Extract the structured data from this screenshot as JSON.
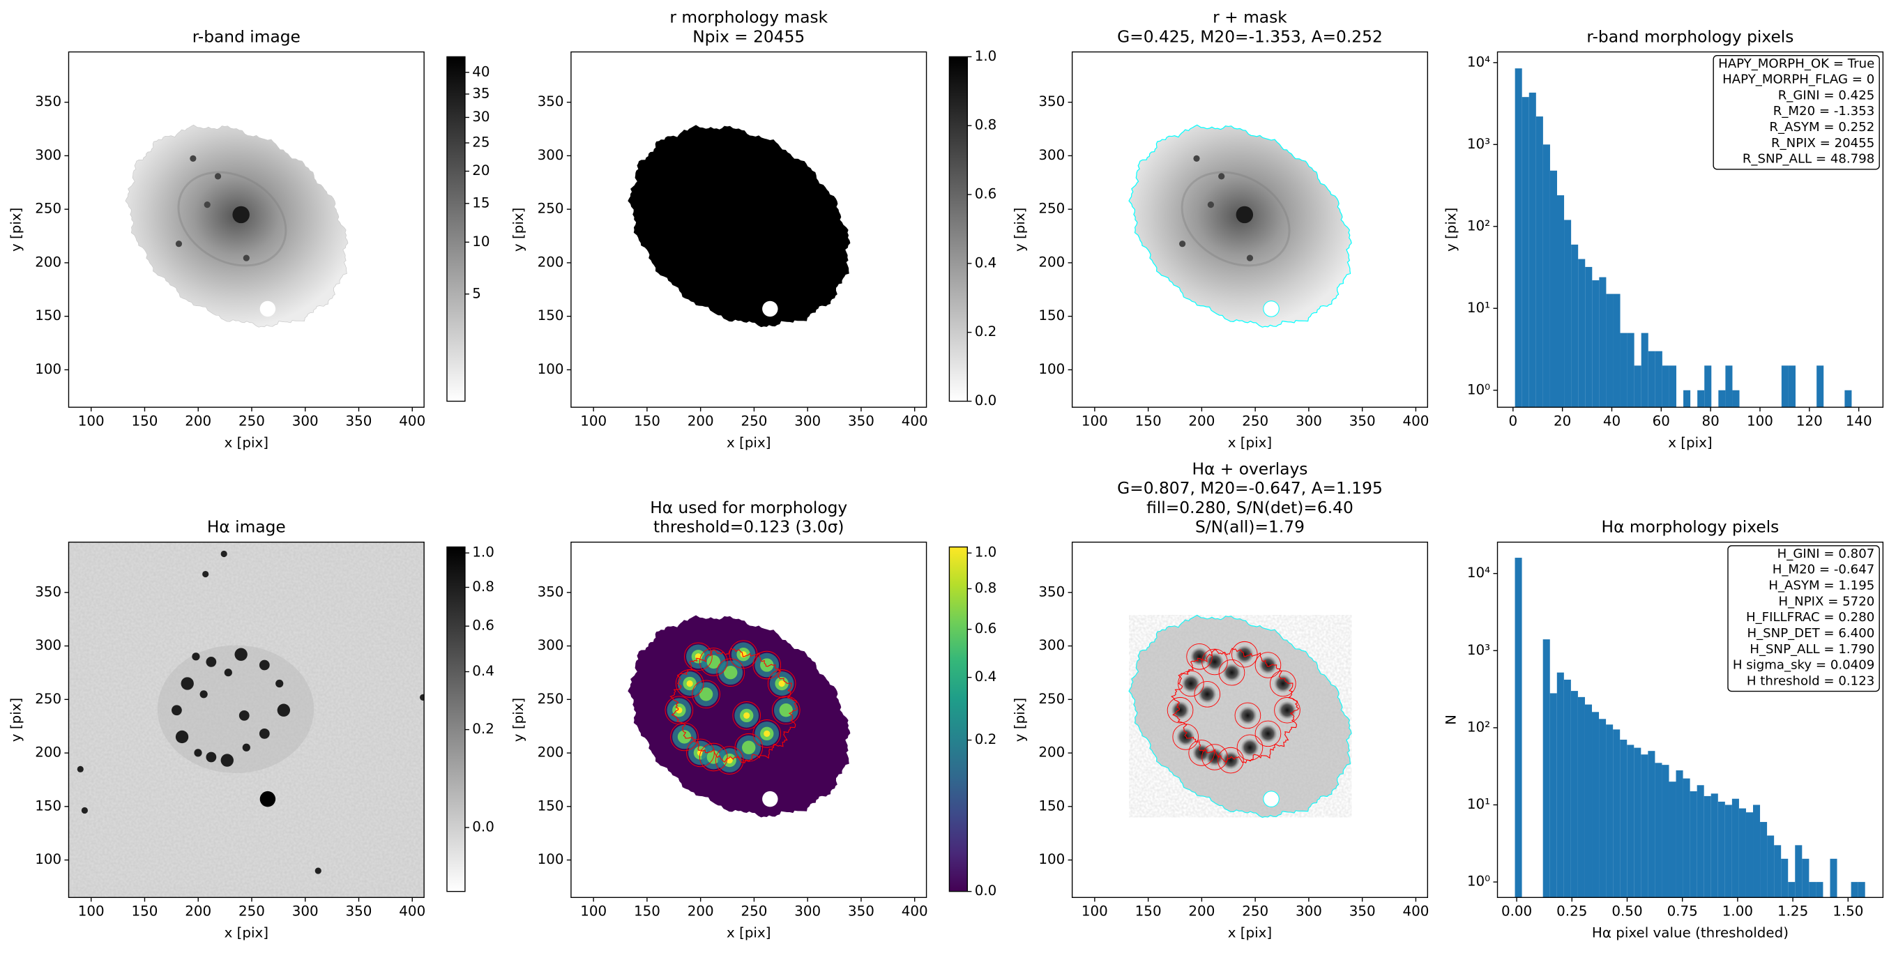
{
  "chart_data": [
    {
      "type": "image",
      "title": [
        "r-band image"
      ],
      "xlabel": "x [pix]",
      "ylabel": "y [pix]",
      "xlim": [
        79,
        411
      ],
      "ylim": [
        65,
        397
      ],
      "xticks": [
        100,
        150,
        200,
        250,
        300,
        350,
        400
      ],
      "yticks": [
        100,
        150,
        200,
        250,
        300,
        350
      ],
      "colorbar": {
        "cmap": "gray_r",
        "clim": [
          0.84,
          43.8
        ],
        "gamma": 0.5,
        "ticks": [
          5,
          10,
          15,
          20,
          25,
          30,
          35,
          40
        ]
      }
    },
    {
      "type": "image",
      "title": [
        "r morphology mask",
        "Npix = 20455"
      ],
      "xlabel": "x [pix]",
      "ylabel": "y [pix]",
      "xlim": [
        79,
        411
      ],
      "ylim": [
        65,
        397
      ],
      "xticks": [
        100,
        150,
        200,
        250,
        300,
        350,
        400
      ],
      "yticks": [
        100,
        150,
        200,
        250,
        300,
        350
      ],
      "colorbar": {
        "cmap": "gray_r",
        "clim": [
          0,
          1
        ],
        "gamma": 1,
        "ticks": [
          {
            "value": 0,
            "label": "0.0"
          },
          {
            "value": 0.2,
            "label": "0.2"
          },
          {
            "value": 0.4,
            "label": "0.4"
          },
          {
            "value": 0.6,
            "label": "0.6"
          },
          {
            "value": 0.8,
            "label": "0.8"
          },
          {
            "value": 1,
            "label": "1.0"
          }
        ]
      }
    },
    {
      "type": "image",
      "title": [
        "r + mask",
        "G=0.425, M20=-1.353, A=0.252"
      ],
      "xlabel": "x [pix]",
      "ylabel": "y [pix]",
      "xlim": [
        79,
        411
      ],
      "ylim": [
        65,
        397
      ],
      "xticks": [
        100,
        150,
        200,
        250,
        300,
        350,
        400
      ],
      "yticks": [
        100,
        150,
        200,
        250,
        300,
        350
      ]
    },
    {
      "type": "histogram",
      "title": [
        "r-band morphology pixels"
      ],
      "xlabel": "x [pix]",
      "ylabel": "y [pix]",
      "color": "#1f77b4",
      "log_y": true,
      "xlim": [
        -6.3,
        149.8
      ],
      "ylim": [
        0.62,
        13500
      ],
      "xticks": [
        0,
        20,
        40,
        60,
        80,
        100,
        120,
        140
      ],
      "yticks": [
        {
          "value": 1,
          "label": "10⁰"
        },
        {
          "value": 10,
          "label": "10¹"
        },
        {
          "value": 100,
          "label": "10²"
        },
        {
          "value": 1000,
          "label": "10³"
        },
        {
          "value": 10000,
          "label": "10⁴"
        }
      ],
      "bins": [
        0.8,
        3.64,
        6.48,
        9.32,
        12.16,
        15,
        17.84,
        20.68,
        23.52,
        26.36,
        29.2,
        32.04,
        34.88,
        37.72,
        40.56,
        43.4,
        46.24,
        49.08,
        51.92,
        54.76,
        57.6,
        60.44,
        63.28,
        66.12,
        68.96,
        71.8,
        74.64,
        77.48,
        80.32,
        83.16,
        86,
        88.84,
        91.68,
        94.52,
        97.36,
        100.2,
        103.04,
        105.88,
        108.72,
        111.56,
        114.4,
        117.24,
        120.08,
        122.92,
        125.76,
        128.6,
        131.44,
        134.28,
        137.12,
        139.96,
        142.8
      ],
      "counts": [
        8500,
        3800,
        4300,
        2200,
        1000,
        480,
        240,
        120,
        60,
        40,
        32,
        22,
        24,
        15,
        15,
        5,
        5,
        2,
        5,
        3,
        3,
        2,
        2,
        0,
        1,
        0,
        1,
        2,
        0,
        1,
        2,
        1,
        0,
        0,
        0,
        0,
        0,
        0,
        2,
        2,
        0,
        0,
        0,
        2,
        0,
        0,
        0,
        1,
        0,
        0
      ],
      "textbox": [
        "HAPY_MORPH_OK = True",
        "HAPY_MORPH_FLAG = 0",
        "R_GINI = 0.425",
        "R_M20 = -1.353",
        "R_ASYM = 0.252",
        "R_NPIX = 20455",
        "R_SNP_ALL = 48.798"
      ]
    },
    {
      "type": "image",
      "title": [
        "Hα image"
      ],
      "xlabel": "x [pix]",
      "ylabel": "y [pix]",
      "xlim": [
        79,
        411
      ],
      "ylim": [
        65,
        397
      ],
      "xticks": [
        100,
        150,
        200,
        250,
        300,
        350,
        400
      ],
      "yticks": [
        100,
        150,
        200,
        250,
        300,
        350
      ],
      "colorbar": {
        "cmap": "gray_r",
        "clim": [
          -0.037,
          1.037
        ],
        "gamma": 0.5,
        "ticks": [
          {
            "value": 0,
            "label": "0.0"
          },
          {
            "value": 0.2,
            "label": "0.2"
          },
          {
            "value": 0.4,
            "label": "0.4"
          },
          {
            "value": 0.6,
            "label": "0.6"
          },
          {
            "value": 0.8,
            "label": "0.8"
          },
          {
            "value": 1,
            "label": "1.0"
          }
        ]
      }
    },
    {
      "type": "image",
      "title": [
        "Hα used for morphology",
        "threshold=0.123 (3.0σ)"
      ],
      "xlabel": "x [pix]",
      "ylabel": "y [pix]",
      "xlim": [
        79,
        411
      ],
      "ylim": [
        65,
        397
      ],
      "xticks": [
        100,
        150,
        200,
        250,
        300,
        350,
        400
      ],
      "yticks": [
        100,
        150,
        200,
        250,
        300,
        350
      ],
      "colorbar": {
        "cmap": "viridis",
        "clim": [
          0,
          1.036
        ],
        "gamma": 0.5,
        "ticks": [
          {
            "value": 0,
            "label": "0.0"
          },
          {
            "value": 0.2,
            "label": "0.2"
          },
          {
            "value": 0.4,
            "label": "0.4"
          },
          {
            "value": 0.6,
            "label": "0.6"
          },
          {
            "value": 0.8,
            "label": "0.8"
          },
          {
            "value": 1,
            "label": "1.0"
          }
        ]
      }
    },
    {
      "type": "image",
      "title": [
        "Hα + overlays",
        "G=0.807, M20=-0.647, A=1.195",
        "fill=0.280, S/N(det)=6.40",
        "S/N(all)=1.79"
      ],
      "xlabel": "x [pix]",
      "ylabel": "y [pix]",
      "xlim": [
        79,
        411
      ],
      "ylim": [
        65,
        397
      ],
      "xticks": [
        100,
        150,
        200,
        250,
        300,
        350,
        400
      ],
      "yticks": [
        100,
        150,
        200,
        250,
        300,
        350
      ]
    },
    {
      "type": "histogram",
      "title": [
        "Hα morphology pixels"
      ],
      "xlabel": "Hα pixel value (thresholded)",
      "ylabel": "N",
      "color": "#1f77b4",
      "log_y": true,
      "xlim": [
        -0.087,
        1.658
      ],
      "ylim": [
        0.63,
        25500
      ],
      "xticks": [
        {
          "value": 0,
          "label": "0.00"
        },
        {
          "value": 0.25,
          "label": "0.25"
        },
        {
          "value": 0.5,
          "label": "0.50"
        },
        {
          "value": 0.75,
          "label": "0.75"
        },
        {
          "value": 1,
          "label": "1.00"
        },
        {
          "value": 1.25,
          "label": "1.25"
        },
        {
          "value": 1.5,
          "label": "1.50"
        }
      ],
      "yticks": [
        {
          "value": 1,
          "label": "10⁰"
        },
        {
          "value": 10,
          "label": "10¹"
        },
        {
          "value": 100,
          "label": "10²"
        },
        {
          "value": 1000,
          "label": "10³"
        },
        {
          "value": 10000,
          "label": "10⁴"
        }
      ],
      "bins": [
        -0.008,
        0.0237,
        0.0554,
        0.0871,
        0.1188,
        0.1505,
        0.1822,
        0.2139,
        0.2456,
        0.2773,
        0.309,
        0.3407,
        0.3724,
        0.4041,
        0.4358,
        0.4675,
        0.4992,
        0.5309,
        0.5626,
        0.5943,
        0.626,
        0.6577,
        0.6894,
        0.7211,
        0.7528,
        0.7845,
        0.8162,
        0.8479,
        0.8796,
        0.9113,
        0.943,
        0.9747,
        1.0064,
        1.0381,
        1.0698,
        1.1015,
        1.1332,
        1.1649,
        1.1966,
        1.2283,
        1.26,
        1.2917,
        1.3234,
        1.3551,
        1.3868,
        1.4185,
        1.4502,
        1.4819,
        1.5136,
        1.5453,
        1.577
      ],
      "counts": [
        16000,
        0,
        0,
        0,
        1400,
        280,
        520,
        420,
        300,
        250,
        200,
        160,
        130,
        110,
        95,
        70,
        60,
        55,
        45,
        50,
        35,
        33,
        20,
        28,
        22,
        15,
        18,
        13,
        14,
        11,
        10,
        12,
        9,
        8,
        10,
        6,
        4,
        3,
        2,
        1,
        3,
        2,
        1,
        1,
        0,
        2,
        0,
        0,
        1,
        1
      ],
      "textbox": [
        "H_GINI = 0.807",
        "H_M20 = -0.647",
        "H_ASYM = 1.195",
        "H_NPIX = 5720",
        "H_FILLFRAC = 0.280",
        "H_SNP_DET = 6.400",
        "H_SNP_ALL = 1.790",
        "H sigma_sky = 0.0409",
        "H threshold = 0.123"
      ]
    }
  ]
}
